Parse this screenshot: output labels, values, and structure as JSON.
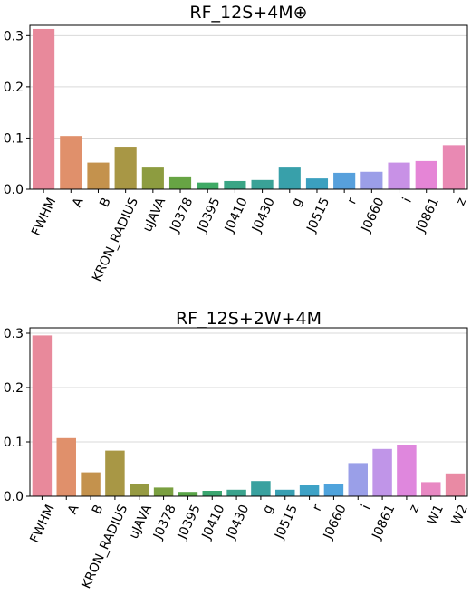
{
  "chart_data": [
    {
      "type": "bar",
      "title": "RF_12S+4M⊕",
      "xlabel": "",
      "ylabel": "",
      "ylim": [
        0,
        0.32
      ],
      "yticks": [
        0.0,
        0.1,
        0.2,
        0.3
      ],
      "grid": true,
      "categories": [
        "FWHM",
        "A",
        "B",
        "KRON_RADIUS",
        "uJAVA",
        "J0378",
        "J0395",
        "J0410",
        "J0430",
        "g",
        "J0515",
        "r",
        "J0660",
        "i",
        "J0861",
        "z"
      ],
      "values": [
        0.313,
        0.104,
        0.052,
        0.083,
        0.044,
        0.025,
        0.013,
        0.016,
        0.018,
        0.044,
        0.021,
        0.032,
        0.034,
        0.052,
        0.055,
        0.086
      ],
      "colors": [
        "#e8899b",
        "#e0906b",
        "#c4924d",
        "#a89745",
        "#8d9c40",
        "#67a444",
        "#3faa65",
        "#3aa585",
        "#3aa297",
        "#38a0aa",
        "#3ba0bf",
        "#57a0dc",
        "#9b9ee8",
        "#c891e6",
        "#e585d6",
        "#e989b3"
      ]
    },
    {
      "type": "bar",
      "title": "RF_12S+2W+4M",
      "xlabel": "",
      "ylabel": "",
      "ylim": [
        0,
        0.31
      ],
      "yticks": [
        0.0,
        0.1,
        0.2,
        0.3
      ],
      "grid": true,
      "categories": [
        "FWHM",
        "A",
        "B",
        "KRON_RADIUS",
        "uJAVA",
        "J0378",
        "J0395",
        "J0410",
        "J0430",
        "g",
        "J0515",
        "r",
        "J0660",
        "i",
        "J0861",
        "z",
        "W1",
        "W2"
      ],
      "values": [
        0.296,
        0.107,
        0.044,
        0.084,
        0.022,
        0.016,
        0.008,
        0.01,
        0.012,
        0.028,
        0.012,
        0.02,
        0.022,
        0.061,
        0.087,
        0.095,
        0.026,
        0.042
      ],
      "colors": [
        "#e8899b",
        "#e0906b",
        "#c4924d",
        "#a89745",
        "#969a42",
        "#7a9f40",
        "#5aa548",
        "#3ba670",
        "#3aa38d",
        "#39a19f",
        "#389fb2",
        "#3ea2c6",
        "#4fa3dc",
        "#9a9fe8",
        "#c095e8",
        "#df87dd",
        "#e888c3",
        "#e98aa4"
      ]
    }
  ]
}
